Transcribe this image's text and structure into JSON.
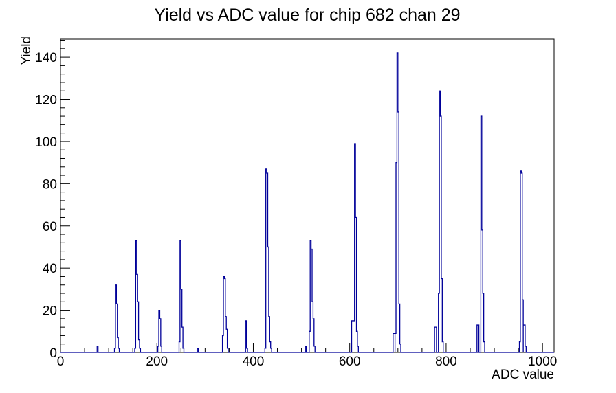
{
  "page": {
    "background": "#ffffff"
  },
  "chart_data": {
    "type": "bar",
    "title": "Yield vs ADC value for chip 682 chan 29",
    "xlabel": "ADC value",
    "ylabel": "Yield",
    "xlim": [
      0,
      1024
    ],
    "ylim": [
      0,
      148.5
    ],
    "x_major_ticks": [
      0,
      200,
      400,
      600,
      800,
      1000
    ],
    "x_minor_step": 50,
    "y_major_ticks": [
      0,
      20,
      40,
      60,
      80,
      100,
      120,
      140
    ],
    "y_minor_step": 4,
    "grid": false,
    "legend": false,
    "bin_width_adc": 2,
    "line_color": "#000099",
    "axis_color": "#000000",
    "clusters": [
      {
        "start": 76,
        "heights": [
          3
        ]
      },
      {
        "start": 112,
        "heights": [
          2,
          32,
          23,
          7,
          2
        ]
      },
      {
        "start": 154,
        "heights": [
          2,
          53,
          37,
          24,
          6,
          2
        ]
      },
      {
        "start": 202,
        "heights": [
          3,
          20,
          16,
          3
        ]
      },
      {
        "start": 246,
        "heights": [
          5,
          53,
          30,
          12,
          2
        ]
      },
      {
        "start": 284,
        "heights": [
          2
        ]
      },
      {
        "start": 336,
        "heights": [
          8,
          36,
          35,
          17,
          11,
          2
        ]
      },
      {
        "start": 384,
        "heights": [
          15,
          2
        ]
      },
      {
        "start": 424,
        "heights": [
          2,
          87,
          85,
          50,
          17,
          5,
          2
        ]
      },
      {
        "start": 508,
        "heights": [
          3
        ]
      },
      {
        "start": 516,
        "heights": [
          10,
          53,
          49,
          24,
          16,
          3
        ]
      },
      {
        "start": 604,
        "heights": [
          15,
          15,
          15,
          99,
          64,
          10,
          3
        ]
      },
      {
        "start": 690,
        "heights": [
          9,
          9
        ]
      },
      {
        "start": 694,
        "heights": [
          9,
          90,
          142,
          114,
          23,
          4
        ]
      },
      {
        "start": 776,
        "heights": [
          12,
          12
        ]
      },
      {
        "start": 784,
        "heights": [
          28,
          124,
          112,
          35,
          5
        ]
      },
      {
        "start": 864,
        "heights": [
          13,
          13
        ]
      },
      {
        "start": 872,
        "heights": [
          112,
          58,
          28,
          5
        ]
      },
      {
        "start": 952,
        "heights": [
          5,
          86,
          85,
          25
        ]
      },
      {
        "start": 960,
        "heights": [
          13,
          13,
          3
        ]
      }
    ],
    "peaks": [
      {
        "adc": 77,
        "yield": 3
      },
      {
        "adc": 115,
        "yield": 32
      },
      {
        "adc": 157,
        "yield": 53
      },
      {
        "adc": 205,
        "yield": 20
      },
      {
        "adc": 249,
        "yield": 53
      },
      {
        "adc": 285,
        "yield": 2
      },
      {
        "adc": 339,
        "yield": 36
      },
      {
        "adc": 385,
        "yield": 15
      },
      {
        "adc": 427,
        "yield": 87
      },
      {
        "adc": 519,
        "yield": 53
      },
      {
        "adc": 611,
        "yield": 99
      },
      {
        "adc": 699,
        "yield": 142
      },
      {
        "adc": 787,
        "yield": 124
      },
      {
        "adc": 873,
        "yield": 112
      },
      {
        "adc": 955,
        "yield": 86
      }
    ]
  }
}
